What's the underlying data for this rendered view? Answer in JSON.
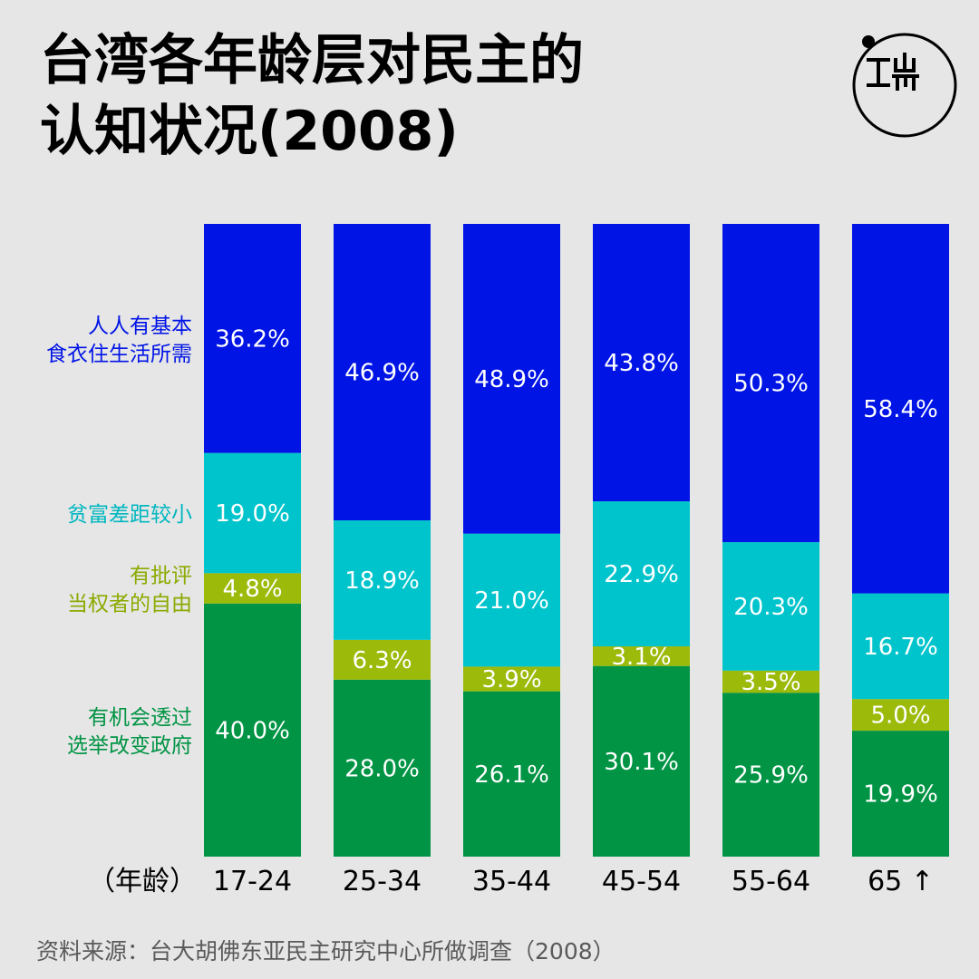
{
  "title_line1": "台湾各年龄层对民主的",
  "title_line2": "认知状况(2008)",
  "source": "资料来源：台大胡佛东亚民主研究中心所做调查（2008）",
  "colors": {
    "basic_needs": "#0014e6",
    "small_gap": "#00c4cc",
    "criticize": "#9cba0a",
    "elections": "#009444"
  },
  "chart_data": {
    "type": "bar",
    "stacked": true,
    "normalized": "100%",
    "x_axis_label": "（年龄）",
    "categories": [
      "17-24",
      "25-34",
      "35-44",
      "45-54",
      "55-64",
      "65 ↑"
    ],
    "series": [
      {
        "key": "elections",
        "name": "有机会透过选举改变政府",
        "label_lines": [
          "有机会透过",
          "选举改变政府"
        ],
        "color": "#009444",
        "values": [
          40.0,
          28.0,
          26.1,
          30.1,
          25.9,
          19.9
        ]
      },
      {
        "key": "criticize",
        "name": "有批评当权者的自由",
        "label_lines": [
          "有批评",
          "当权者的自由"
        ],
        "color": "#9cba0a",
        "values": [
          4.8,
          6.3,
          3.9,
          3.1,
          3.5,
          5.0
        ]
      },
      {
        "key": "small_gap",
        "name": "贫富差距较小",
        "label_lines": [
          "贫富差距较小"
        ],
        "color": "#00c4cc",
        "values": [
          19.0,
          18.9,
          21.0,
          22.9,
          20.3,
          16.7
        ]
      },
      {
        "key": "basic_needs",
        "name": "人人有基本食衣住生活所需",
        "label_lines": [
          "人人有基本",
          "食衣住生活所需"
        ],
        "color": "#0014e6",
        "values": [
          36.2,
          46.9,
          48.9,
          43.8,
          50.3,
          58.4
        ]
      }
    ],
    "value_format": "{v}%",
    "ylim": [
      0,
      100
    ]
  }
}
